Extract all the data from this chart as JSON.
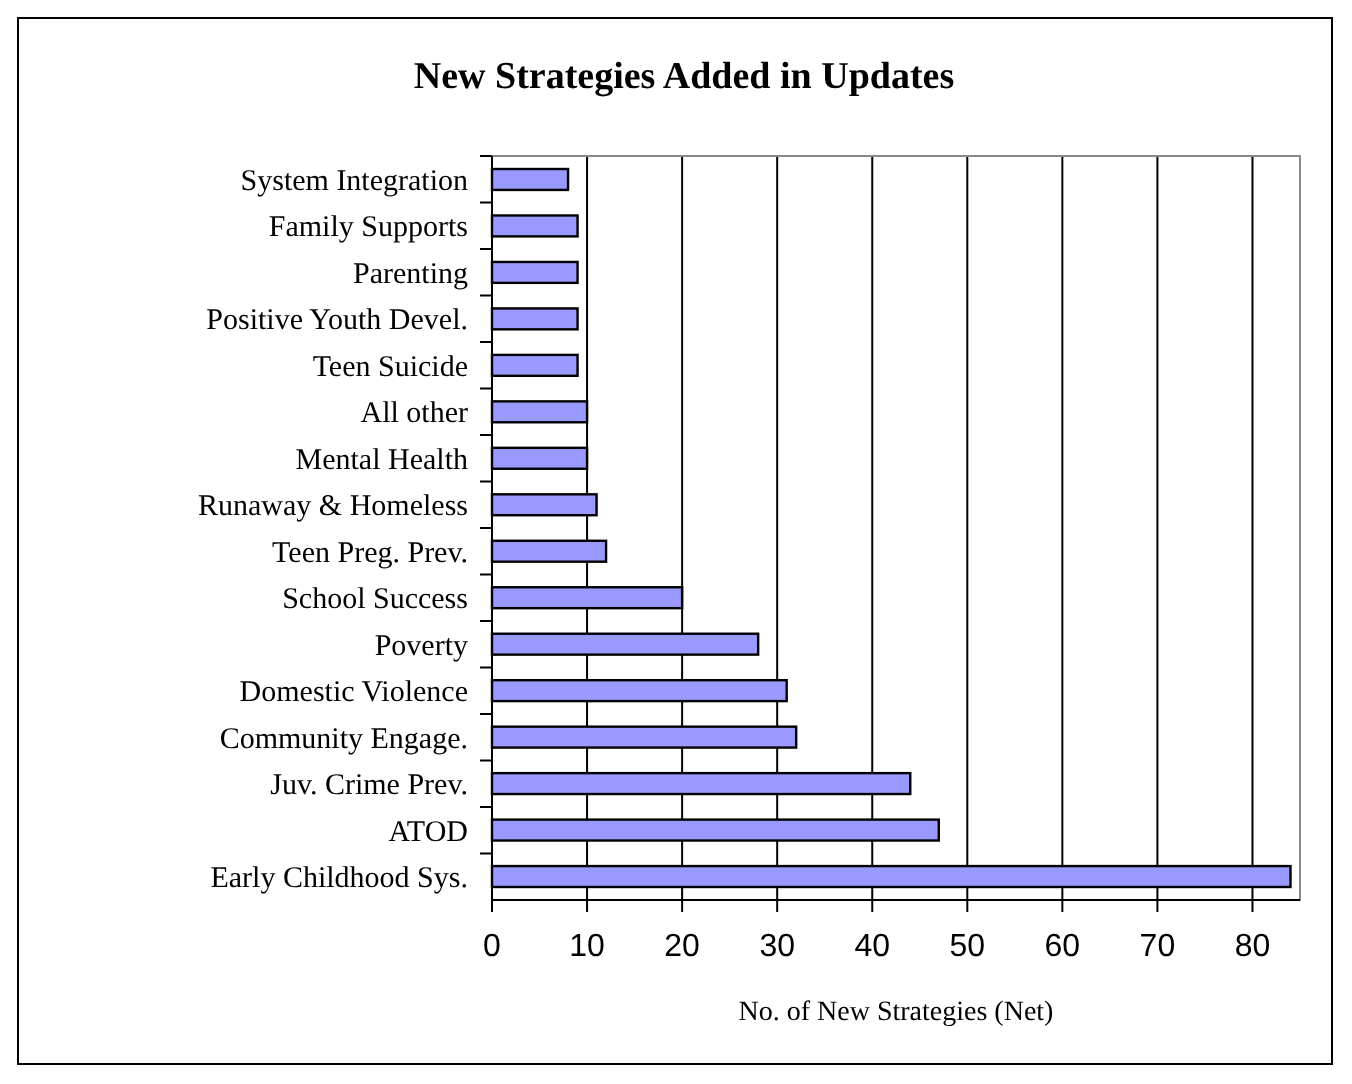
{
  "chart_data": {
    "type": "bar",
    "orientation": "horizontal",
    "title": "New Strategies Added in Updates",
    "xlabel": "No. of New Strategies (Net)",
    "categories": [
      "System Integration",
      "Family Supports",
      "Parenting",
      "Positive Youth Devel.",
      "Teen Suicide",
      "All other",
      "Mental Health",
      "Runaway & Homeless",
      "Teen Preg. Prev.",
      "School Success",
      "Poverty",
      "Domestic Violence",
      "Community Engage.",
      "Juv. Crime Prev.",
      "ATOD",
      "Early Childhood Sys."
    ],
    "values": [
      8,
      9,
      9,
      9,
      9,
      10,
      10,
      11,
      12,
      20,
      28,
      31,
      32,
      44,
      47,
      84
    ],
    "color": "#9999ff",
    "xlim": [
      0,
      85
    ],
    "xticks": [
      0,
      10,
      20,
      30,
      40,
      50,
      60,
      70,
      80
    ],
    "grid": "x"
  }
}
